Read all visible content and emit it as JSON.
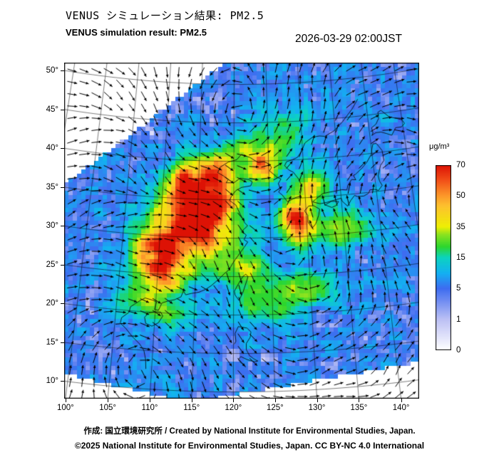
{
  "header": {
    "title_jp": "VENUS シミュレーション結果: PM2.5",
    "title_en": "VENUS simulation result: PM2.5",
    "timestamp": "2026-03-29 02:00JST"
  },
  "axes": {
    "lat_ticks": [
      "50°",
      "45°",
      "40°",
      "35°",
      "30°",
      "25°",
      "20°",
      "15°",
      "10°"
    ],
    "lat_values": [
      50,
      45,
      40,
      35,
      30,
      25,
      20,
      15,
      10
    ],
    "lon_ticks": [
      "100°",
      "105°",
      "110°",
      "115°",
      "120°",
      "125°",
      "130°",
      "135°",
      "140°"
    ],
    "lon_values": [
      100,
      105,
      110,
      115,
      120,
      125,
      130,
      135,
      140
    ]
  },
  "colorbar": {
    "title": "μg/m³",
    "tick_labels": [
      "70",
      "50",
      "35",
      "15",
      "5",
      "1",
      "0"
    ],
    "levels": [
      0,
      1,
      5,
      15,
      35,
      50,
      70
    ],
    "stops": [
      {
        "v": 0,
        "c": "#ffffff"
      },
      {
        "v": 1,
        "c": "#bcc0f4"
      },
      {
        "v": 5,
        "c": "#3e6cf0"
      },
      {
        "v": 10,
        "c": "#13b1f2"
      },
      {
        "v": 15,
        "c": "#0cd3c0"
      },
      {
        "v": 22,
        "c": "#2cd62e"
      },
      {
        "v": 30,
        "c": "#8ce31f"
      },
      {
        "v": 35,
        "c": "#eeef04"
      },
      {
        "v": 45,
        "c": "#fdc22e"
      },
      {
        "v": 50,
        "c": "#fc992a"
      },
      {
        "v": 60,
        "c": "#f25019"
      },
      {
        "v": 70,
        "c": "#dd1205"
      }
    ]
  },
  "footer": {
    "credit": "作成: 国立環境研究所 / Created by National Institute for Environmental Studies, Japan.",
    "license": "©2025 National Institute for Environmental Studies, Japan. CC BY-NC 4.0 International"
  },
  "chart_data": {
    "type": "heatmap",
    "title": "VENUS simulation result: PM2.5",
    "datetime": "2026-03-29 02:00JST",
    "units": "μg/m³",
    "color_levels": [
      0,
      1,
      5,
      15,
      35,
      50,
      70
    ],
    "lon_range": [
      100,
      140
    ],
    "lat_range": [
      10,
      50
    ],
    "overlays": [
      "wind vectors",
      "coastlines",
      "lat-lon graticule"
    ],
    "high_concentration_regions": [
      "eastern China",
      "East China Sea",
      "Yellow Sea",
      "southern Korea",
      "western Kyushu"
    ]
  }
}
